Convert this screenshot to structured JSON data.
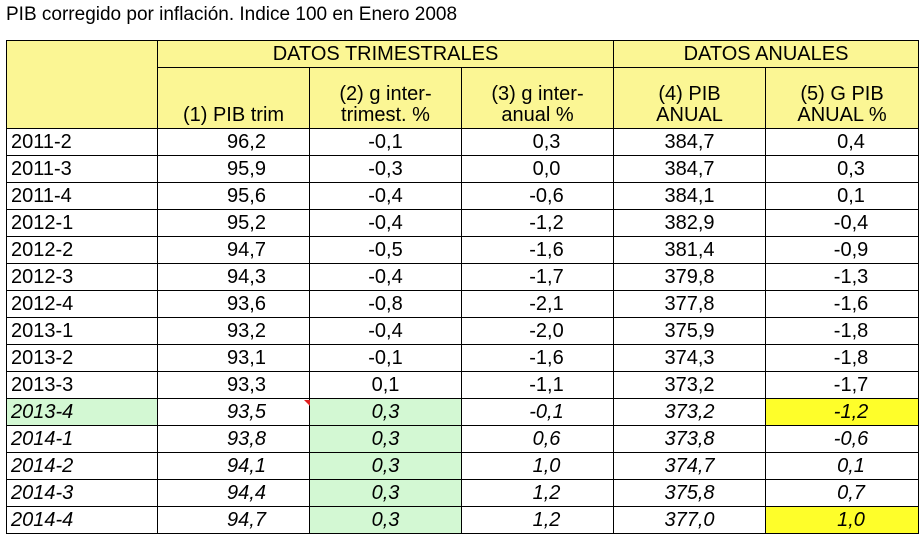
{
  "title": "PIB corregido por inflación. Indice 100 en Enero 2008",
  "header": {
    "group_trimestral": "DATOS TRIMESTRALES",
    "group_anual": "DATOS ANUALES",
    "col1": [
      "",
      "(1) PIB trim"
    ],
    "col2": [
      "(2) g inter-",
      "trimest. %"
    ],
    "col3": [
      "(3) g inter-",
      "anual %"
    ],
    "col4": [
      "(4) PIB",
      "ANUAL"
    ],
    "col5": [
      "(5) G PIB",
      "ANUAL %"
    ]
  },
  "rows": [
    {
      "period": "2011-2",
      "pib_trim": "96,2",
      "g_intertrim": "-0,1",
      "g_interanual": "0,3",
      "pib_anual": "384,7",
      "g_pib_anual": "0,4"
    },
    {
      "period": "2011-3",
      "pib_trim": "95,9",
      "g_intertrim": "-0,3",
      "g_interanual": "0,0",
      "pib_anual": "384,7",
      "g_pib_anual": "0,3"
    },
    {
      "period": "2011-4",
      "pib_trim": "95,6",
      "g_intertrim": "-0,4",
      "g_interanual": "-0,6",
      "pib_anual": "384,1",
      "g_pib_anual": "0,1"
    },
    {
      "period": "2012-1",
      "pib_trim": "95,2",
      "g_intertrim": "-0,4",
      "g_interanual": "-1,2",
      "pib_anual": "382,9",
      "g_pib_anual": "-0,4"
    },
    {
      "period": "2012-2",
      "pib_trim": "94,7",
      "g_intertrim": "-0,5",
      "g_interanual": "-1,6",
      "pib_anual": "381,4",
      "g_pib_anual": "-0,9"
    },
    {
      "period": "2012-3",
      "pib_trim": "94,3",
      "g_intertrim": "-0,4",
      "g_interanual": "-1,7",
      "pib_anual": "379,8",
      "g_pib_anual": "-1,3"
    },
    {
      "period": "2012-4",
      "pib_trim": "93,6",
      "g_intertrim": "-0,8",
      "g_interanual": "-2,1",
      "pib_anual": "377,8",
      "g_pib_anual": "-1,6"
    },
    {
      "period": "2013-1",
      "pib_trim": "93,2",
      "g_intertrim": "-0,4",
      "g_interanual": "-2,0",
      "pib_anual": "375,9",
      "g_pib_anual": "-1,8"
    },
    {
      "period": "2013-2",
      "pib_trim": "93,1",
      "g_intertrim": "-0,1",
      "g_interanual": "-1,6",
      "pib_anual": "374,3",
      "g_pib_anual": "-1,8"
    },
    {
      "period": "2013-3",
      "pib_trim": "93,3",
      "g_intertrim": "0,1",
      "g_interanual": "-1,1",
      "pib_anual": "373,2",
      "g_pib_anual": "-1,7"
    },
    {
      "period": "2013-4",
      "pib_trim": "93,5",
      "g_intertrim": "0,3",
      "g_interanual": "-0,1",
      "pib_anual": "373,2",
      "g_pib_anual": "-1,2",
      "italic": true,
      "green_period": true,
      "green_g": true,
      "yellow_g5": true
    },
    {
      "period": "2014-1",
      "pib_trim": "93,8",
      "g_intertrim": "0,3",
      "g_interanual": "0,6",
      "pib_anual": "373,8",
      "g_pib_anual": "-0,6",
      "italic": true,
      "green_g": true
    },
    {
      "period": "2014-2",
      "pib_trim": "94,1",
      "g_intertrim": "0,3",
      "g_interanual": "1,0",
      "pib_anual": "374,7",
      "g_pib_anual": "0,1",
      "italic": true,
      "green_g": true
    },
    {
      "period": "2014-3",
      "pib_trim": "94,4",
      "g_intertrim": "0,3",
      "g_interanual": "1,2",
      "pib_anual": "375,8",
      "g_pib_anual": "0,7",
      "italic": true,
      "green_g": true
    },
    {
      "period": "2014-4",
      "pib_trim": "94,7",
      "g_intertrim": "0,3",
      "g_interanual": "1,2",
      "pib_anual": "377,0",
      "g_pib_anual": "1,0",
      "italic": true,
      "green_g": true,
      "yellow_g5": true
    }
  ],
  "colors": {
    "header_bg": "#fbf694",
    "green_highlight": "#d3f8d3",
    "yellow_highlight": "#fefe2a",
    "comment_marker": "#e02020"
  }
}
